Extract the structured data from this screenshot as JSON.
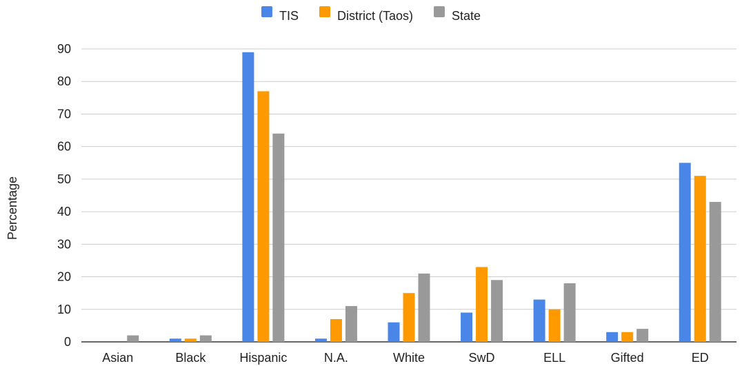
{
  "chart_data": {
    "type": "bar",
    "ylabel": "Percentage",
    "xlabel": "",
    "ylim": [
      0,
      90
    ],
    "yticks": [
      0,
      10,
      20,
      30,
      40,
      50,
      60,
      70,
      80,
      90
    ],
    "grid": true,
    "legend_position": "top",
    "categories": [
      "Asian",
      "Black",
      "Hispanic",
      "N.A.",
      "White",
      "SwD",
      "ELL",
      "Gifted",
      "ED"
    ],
    "series": [
      {
        "name": "TIS",
        "color": "#4a86e8",
        "values": [
          0,
          1,
          89,
          1,
          6,
          9,
          13,
          3,
          55
        ]
      },
      {
        "name": "District (Taos)",
        "color": "#ff9900",
        "values": [
          0,
          1,
          77,
          7,
          15,
          23,
          10,
          3,
          51
        ]
      },
      {
        "name": "State",
        "color": "#999999",
        "values": [
          2,
          2,
          64,
          11,
          21,
          19,
          18,
          4,
          43
        ]
      }
    ]
  }
}
